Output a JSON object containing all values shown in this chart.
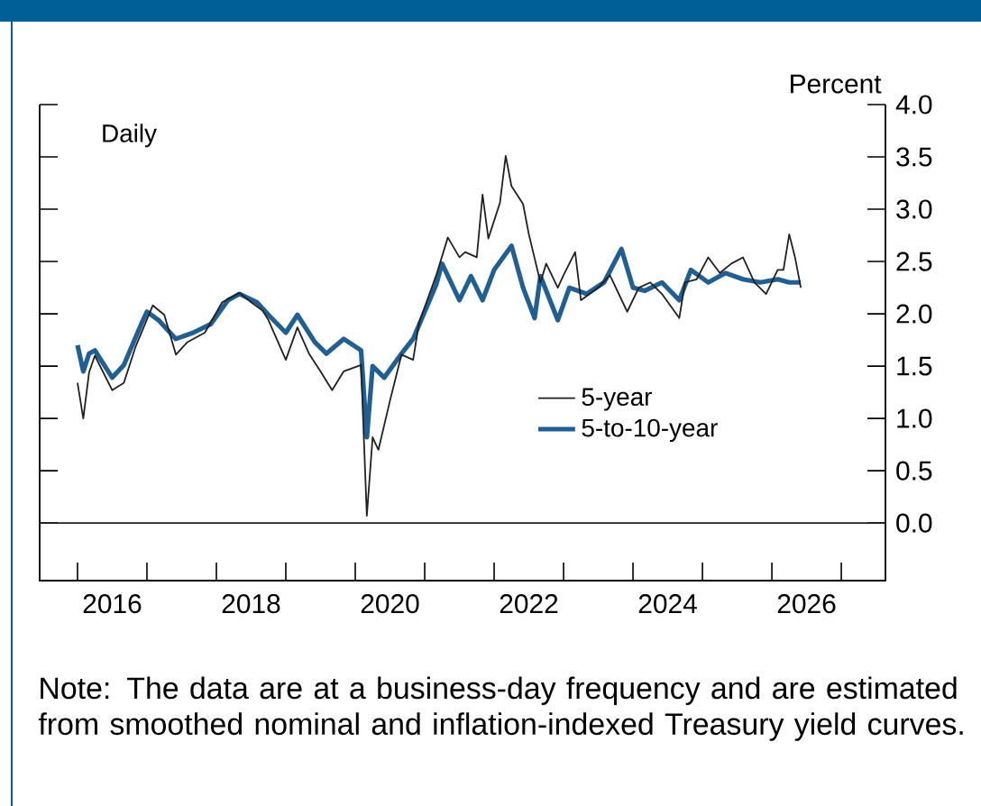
{
  "chart_data": {
    "type": "line",
    "ylabel": "Percent",
    "annotations": [
      "Daily",
      "Note: The data are at a business-day frequency and are estimated from smoothed nominal and inflation-indexed Treasury yield curves."
    ],
    "xlim": [
      "2015-06-15",
      "2027-08-20"
    ],
    "ylim": [
      -0.55,
      4.0
    ],
    "yticks": [
      {
        "value": 0,
        "label": "0.0"
      },
      {
        "value": 0.5,
        "label": "0.5"
      },
      {
        "value": 1,
        "label": "1.0"
      },
      {
        "value": 1.5,
        "label": "1.5"
      },
      {
        "value": 2,
        "label": "2.0"
      },
      {
        "value": 2.5,
        "label": "2.5"
      },
      {
        "value": 3,
        "label": "3.0"
      },
      {
        "value": 3.5,
        "label": "3.5"
      },
      {
        "value": 4,
        "label": "4.0"
      }
    ],
    "xticks": [
      {
        "value": "2016-01-01",
        "label": null
      },
      {
        "value": "2017-01-01",
        "label": null
      },
      {
        "value": "2018-01-01",
        "label": null
      },
      {
        "value": "2019-01-01",
        "label": null
      },
      {
        "value": "2020-01-01",
        "label": null
      },
      {
        "value": "2021-01-01",
        "label": null
      },
      {
        "value": "2022-01-01",
        "label": null
      },
      {
        "value": "2023-01-01",
        "label": null
      },
      {
        "value": "2024-01-01",
        "label": null
      },
      {
        "value": "2025-01-01",
        "label": null
      },
      {
        "value": "2026-01-01",
        "label": null
      },
      {
        "value": "2027-01-01",
        "label": null
      },
      {
        "value": "2016-07-01",
        "label": "2016"
      },
      {
        "value": "2018-07-01",
        "label": "2018"
      },
      {
        "value": "2020-07-01",
        "label": "2020"
      },
      {
        "value": "2022-07-01",
        "label": "2022"
      },
      {
        "value": "2024-07-01",
        "label": "2024"
      },
      {
        "value": "2026-07-01",
        "label": "2026"
      }
    ],
    "ref_lines": [
      {
        "axis": "y",
        "value": 0,
        "color": "#231f20"
      }
    ],
    "legend": "bottom right",
    "series": [
      {
        "name": "5-year",
        "color": "#231f20",
        "x": [
          "2016-01",
          "2016-02",
          "2016-03",
          "2016-04",
          "2016-07",
          "2016-09",
          "2016-11",
          "2017-02",
          "2017-04",
          "2017-06",
          "2017-08",
          "2017-11",
          "2018-02",
          "2018-05",
          "2018-07",
          "2018-09",
          "2018-10",
          "2019-01",
          "2019-03",
          "2019-05",
          "2019-07",
          "2019-09",
          "2019-11",
          "2020-02",
          "2020-03",
          "2020-04",
          "2020-05",
          "2020-07",
          "2020-09",
          "2020-11",
          "2020-12",
          "2021-03",
          "2021-05",
          "2021-07",
          "2021-08",
          "2021-10",
          "2021-11",
          "2021-12",
          "2022-02",
          "2022-03",
          "2022-04",
          "2022-06",
          "2022-07",
          "2022-09",
          "2022-10",
          "2022-12",
          "2023-01",
          "2023-03",
          "2023-04",
          "2023-07",
          "2023-09",
          "2023-12",
          "2024-02",
          "2024-04",
          "2024-06",
          "2024-09",
          "2024-10",
          "2024-12",
          "2025-02",
          "2025-04",
          "2025-06",
          "2025-08",
          "2025-10",
          "2025-12",
          "2026-02",
          "2026-03",
          "2026-04",
          "2026-05",
          "2026-06"
        ],
        "values": [
          1.34,
          1.0,
          1.44,
          1.6,
          1.27,
          1.34,
          1.68,
          2.08,
          1.99,
          1.61,
          1.73,
          1.82,
          2.11,
          2.2,
          2.11,
          2.03,
          1.94,
          1.56,
          1.87,
          1.62,
          1.45,
          1.27,
          1.45,
          1.51,
          0.07,
          0.82,
          0.7,
          1.17,
          1.61,
          1.56,
          1.91,
          2.37,
          2.73,
          2.54,
          2.59,
          2.54,
          3.14,
          2.72,
          3.06,
          3.51,
          3.22,
          3.05,
          2.76,
          2.3,
          2.48,
          2.25,
          2.37,
          2.59,
          2.13,
          2.25,
          2.37,
          2.02,
          2.25,
          2.3,
          2.19,
          1.96,
          2.3,
          2.33,
          2.54,
          2.39,
          2.48,
          2.54,
          2.3,
          2.19,
          2.42,
          2.42,
          2.76,
          2.54,
          2.25
        ]
      },
      {
        "name": "5-to-10-year",
        "color": "#1f5f94",
        "x": [
          "2016-01",
          "2016-02",
          "2016-03",
          "2016-04",
          "2016-07",
          "2016-09",
          "2016-12",
          "2017-01",
          "2017-03",
          "2017-06",
          "2017-09",
          "2017-12",
          "2018-03",
          "2018-05",
          "2018-08",
          "2018-10",
          "2019-01",
          "2019-03",
          "2019-06",
          "2019-08",
          "2019-11",
          "2020-02",
          "2020-03",
          "2020-04",
          "2020-06",
          "2020-09",
          "2020-11",
          "2021-01",
          "2021-03",
          "2021-04",
          "2021-07",
          "2021-09",
          "2021-11",
          "2022-01",
          "2022-04",
          "2022-06",
          "2022-08",
          "2022-09",
          "2022-12",
          "2023-02",
          "2023-05",
          "2023-08",
          "2023-11",
          "2024-01",
          "2024-03",
          "2024-06",
          "2024-09",
          "2024-11",
          "2025-02",
          "2025-05",
          "2025-08",
          "2025-11",
          "2026-02",
          "2026-04",
          "2026-06"
        ],
        "values": [
          1.7,
          1.45,
          1.62,
          1.65,
          1.39,
          1.51,
          1.9,
          2.02,
          1.94,
          1.76,
          1.82,
          1.9,
          2.13,
          2.19,
          2.11,
          1.99,
          1.82,
          1.99,
          1.73,
          1.62,
          1.76,
          1.65,
          0.82,
          1.5,
          1.39,
          1.62,
          1.76,
          2.02,
          2.28,
          2.48,
          2.13,
          2.36,
          2.13,
          2.42,
          2.65,
          2.25,
          1.96,
          2.36,
          1.94,
          2.25,
          2.19,
          2.3,
          2.62,
          2.25,
          2.22,
          2.3,
          2.13,
          2.42,
          2.3,
          2.39,
          2.33,
          2.3,
          2.33,
          2.3,
          2.3
        ]
      }
    ]
  }
}
